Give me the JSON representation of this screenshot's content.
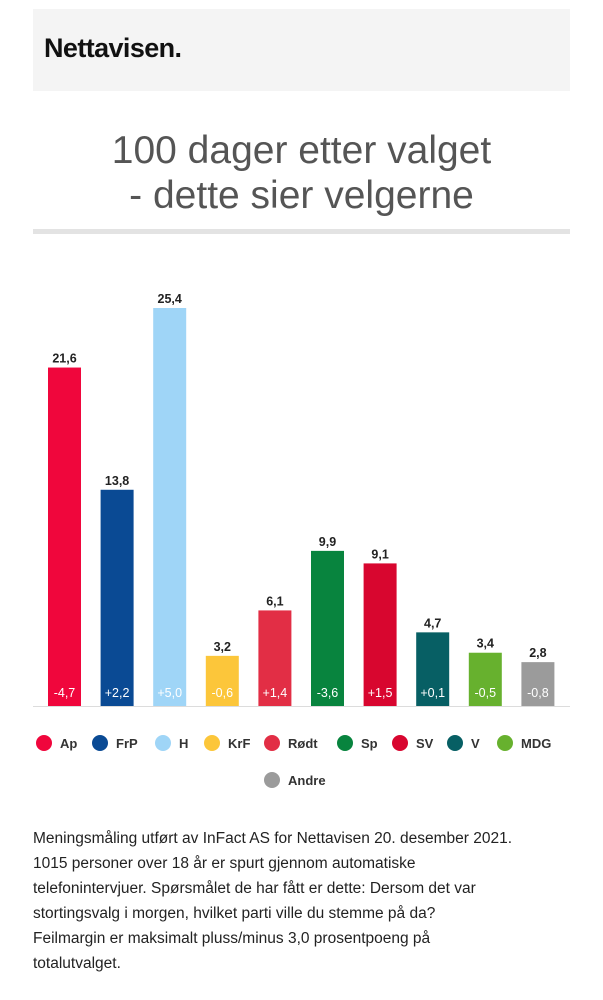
{
  "header": {
    "logo_text": "Nettavisen."
  },
  "title": {
    "line1": "100 dager etter valget",
    "line2": "- dette sier velgerne"
  },
  "chart_data": {
    "type": "bar",
    "categories": [
      "Ap",
      "FrP",
      "H",
      "KrF",
      "Rødt",
      "Sp",
      "SV",
      "V",
      "MDG",
      "Andre"
    ],
    "values": [
      21.6,
      13.8,
      25.4,
      3.2,
      6.1,
      9.9,
      9.1,
      4.7,
      3.4,
      2.8
    ],
    "value_labels": [
      "21,6",
      "13,8",
      "25,4",
      "3,2",
      "6,1",
      "9,9",
      "9,1",
      "4,7",
      "3,4",
      "2,8"
    ],
    "change_labels": [
      "-4,7",
      "+2,2",
      "+5,0",
      "-0,6",
      "+1,4",
      "-3,6",
      "+1,5",
      "+0,1",
      "-0,5",
      "-0,8"
    ],
    "colors": [
      "#f0063c",
      "#0a4a94",
      "#9fd5f7",
      "#fcc63a",
      "#e22e45",
      "#08843e",
      "#d8062f",
      "#075f64",
      "#67b12e",
      "#9b9b9b"
    ],
    "ylim": [
      0,
      30
    ],
    "legend_position": "bottom",
    "grid": false
  },
  "note_lines": [
    "Meningsmåling utført av InFact AS for Nettavisen 20. desember 2021.",
    "1015 personer over 18 år er spurt gjennom automatiske",
    "telefonintervjuer. Spørsmålet de har fått er dette: Dersom det var",
    "stortingsvalg i morgen, hvilket parti ville du stemme på da?",
    "Feilmargin er maksimalt pluss/minus 3,0 prosentpoeng på",
    "totalutvalget."
  ]
}
